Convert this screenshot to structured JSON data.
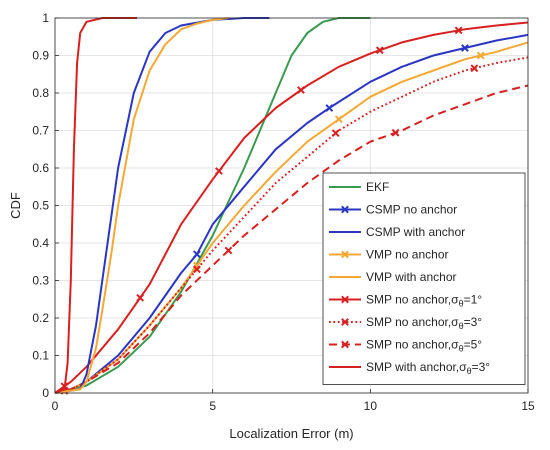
{
  "chart_data": {
    "type": "line",
    "xlabel": "Localization Error (m)",
    "ylabel": "CDF",
    "xlim": [
      0,
      15
    ],
    "ylim": [
      0,
      1
    ],
    "xticks": [
      0,
      5,
      10,
      15
    ],
    "yticks": [
      0,
      0.1,
      0.2,
      0.3,
      0.4,
      0.5,
      0.6,
      0.7,
      0.8,
      0.9,
      1
    ],
    "grid": true,
    "legend_position": "lower-right",
    "series": [
      {
        "name": "EKF",
        "color": "#3a9a4f",
        "dash": "solid",
        "marker": "none",
        "x": [
          0,
          1.0,
          2.0,
          3.0,
          4.0,
          5.0,
          6.0,
          7.0,
          7.5,
          8.0,
          8.5,
          9.0,
          9.5,
          10.0
        ],
        "y": [
          0,
          0.02,
          0.07,
          0.15,
          0.27,
          0.42,
          0.6,
          0.8,
          0.9,
          0.96,
          0.99,
          1.0,
          1.0,
          1.0
        ]
      },
      {
        "name": "CSMP no anchor",
        "color": "#2a37c4",
        "dash": "solid",
        "marker": "x",
        "x": [
          0,
          0.5,
          1.0,
          2.0,
          3.0,
          4.0,
          4.5,
          5.0,
          6.0,
          7.0,
          8.0,
          8.7,
          10.0,
          11.0,
          12.0,
          13.0,
          14.0,
          15.0
        ],
        "y": [
          0,
          0.01,
          0.03,
          0.1,
          0.2,
          0.32,
          0.37,
          0.45,
          0.55,
          0.65,
          0.72,
          0.76,
          0.83,
          0.87,
          0.9,
          0.92,
          0.94,
          0.955
        ],
        "marker_x": [
          0.3,
          4.5,
          8.7,
          13.0
        ]
      },
      {
        "name": "CSMP with anchor",
        "color": "#2a37c4",
        "dash": "solid",
        "marker": "none",
        "x": [
          0,
          0.8,
          1.0,
          1.3,
          1.5,
          1.8,
          2.0,
          2.5,
          3.0,
          3.5,
          4.0,
          5.0,
          6.0,
          6.8
        ],
        "y": [
          0,
          0.01,
          0.05,
          0.18,
          0.3,
          0.48,
          0.6,
          0.8,
          0.91,
          0.96,
          0.98,
          0.995,
          1.0,
          1.0
        ]
      },
      {
        "name": "VMP no anchor",
        "color": "#f5a833",
        "dash": "solid",
        "marker": "x",
        "x": [
          0,
          0.5,
          1.0,
          2.0,
          3.0,
          4.0,
          5.0,
          6.0,
          7.0,
          8.0,
          9.0,
          10.0,
          11.0,
          12.0,
          13.0,
          14.0,
          15.0
        ],
        "y": [
          0,
          0.01,
          0.03,
          0.09,
          0.18,
          0.28,
          0.4,
          0.5,
          0.59,
          0.67,
          0.73,
          0.79,
          0.83,
          0.86,
          0.89,
          0.91,
          0.935
        ],
        "marker_x": [
          0.3,
          4.5,
          9.0,
          13.5
        ]
      },
      {
        "name": "VMP with anchor",
        "color": "#f5a833",
        "dash": "solid",
        "marker": "none",
        "x": [
          0,
          0.8,
          1.0,
          1.3,
          1.5,
          1.8,
          2.0,
          2.5,
          3.0,
          3.5,
          4.0,
          4.5,
          5.0,
          5.5
        ],
        "y": [
          0,
          0.01,
          0.03,
          0.12,
          0.22,
          0.38,
          0.5,
          0.73,
          0.86,
          0.93,
          0.97,
          0.985,
          0.995,
          1.0
        ]
      },
      {
        "name": "SMP no anchor,σθ=1°",
        "color": "#d92020",
        "dash": "solid",
        "marker": "x",
        "x": [
          0,
          0.5,
          1.0,
          2.0,
          3.0,
          4.0,
          5.0,
          6.0,
          7.0,
          8.0,
          9.0,
          10.0,
          11.0,
          12.0,
          13.0,
          14.0,
          15.0
        ],
        "y": [
          0,
          0.03,
          0.07,
          0.17,
          0.29,
          0.45,
          0.57,
          0.68,
          0.76,
          0.82,
          0.87,
          0.905,
          0.935,
          0.955,
          0.97,
          0.98,
          0.988
        ],
        "marker_x": [
          0.3,
          2.7,
          5.2,
          7.8,
          10.3,
          12.8
        ]
      },
      {
        "name": "SMP no anchor,σθ=3°",
        "color": "#d92020",
        "dash": "dotted",
        "marker": "x",
        "x": [
          0,
          0.5,
          1.0,
          2.0,
          3.0,
          4.0,
          5.0,
          6.0,
          7.0,
          8.0,
          9.0,
          10.0,
          11.0,
          12.0,
          13.0,
          14.0,
          15.0
        ],
        "y": [
          0,
          0.01,
          0.03,
          0.09,
          0.18,
          0.28,
          0.38,
          0.47,
          0.56,
          0.63,
          0.7,
          0.75,
          0.79,
          0.83,
          0.86,
          0.88,
          0.895
        ],
        "marker_x": [
          0.3,
          4.5,
          8.9,
          13.3
        ]
      },
      {
        "name": "SMP no anchor,σθ=5°",
        "color": "#d92020",
        "dash": "dashed",
        "marker": "x",
        "x": [
          0,
          0.5,
          1.0,
          2.0,
          3.0,
          4.0,
          5.0,
          6.0,
          7.0,
          8.0,
          9.0,
          10.0,
          11.0,
          12.0,
          13.0,
          14.0,
          15.0
        ],
        "y": [
          0,
          0.01,
          0.03,
          0.08,
          0.16,
          0.26,
          0.34,
          0.42,
          0.49,
          0.56,
          0.62,
          0.67,
          0.7,
          0.74,
          0.77,
          0.8,
          0.82
        ],
        "marker_x": [
          0.3,
          5.5,
          10.8
        ]
      },
      {
        "name": "SMP with anchor,σθ=3°",
        "color": "#d92020",
        "dash": "solid",
        "marker": "none",
        "x": [
          0,
          0.3,
          0.4,
          0.5,
          0.6,
          0.7,
          0.8,
          1.0,
          1.5,
          2.0,
          2.6
        ],
        "y": [
          0,
          0.01,
          0.08,
          0.3,
          0.65,
          0.88,
          0.96,
          0.99,
          1.0,
          1.0,
          1.0
        ]
      }
    ],
    "legend": [
      {
        "label": "EKF",
        "sub": "",
        "tail": ""
      },
      {
        "label": "CSMP no anchor",
        "sub": "",
        "tail": ""
      },
      {
        "label": "CSMP with anchor",
        "sub": "",
        "tail": ""
      },
      {
        "label": "VMP no anchor",
        "sub": "",
        "tail": ""
      },
      {
        "label": "VMP with anchor",
        "sub": "",
        "tail": ""
      },
      {
        "label": "SMP no anchor,σ",
        "sub": "θ",
        "tail": "=1°"
      },
      {
        "label": "SMP no anchor,σ",
        "sub": "θ",
        "tail": "=3°"
      },
      {
        "label": "SMP no anchor,σ",
        "sub": "θ",
        "tail": "=5°"
      },
      {
        "label": "SMP with anchor,σ",
        "sub": "θ",
        "tail": "=3°"
      }
    ]
  }
}
